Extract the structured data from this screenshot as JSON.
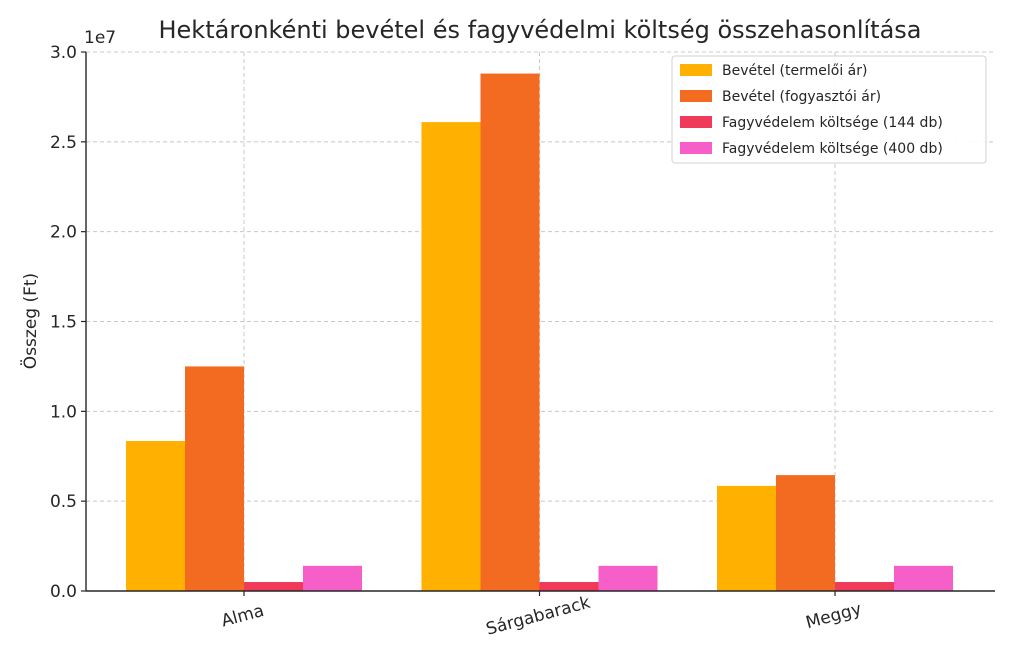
{
  "chart_data": {
    "type": "bar",
    "title": "Hektáronkénti bevétel és fagyvédelmi költség összehasonlítása",
    "ylabel": "Összeg (Ft)",
    "xlabel": "",
    "y_offset_label": "1e7",
    "y_scale": 10000000,
    "ylim": [
      0,
      30000000
    ],
    "yticks": [
      0,
      5000000,
      10000000,
      15000000,
      20000000,
      25000000,
      30000000
    ],
    "ytick_labels": [
      "0.0",
      "0.5",
      "1.0",
      "1.5",
      "2.0",
      "2.5",
      "3.0"
    ],
    "categories": [
      "Alma",
      "Sárgabarack",
      "Meggy"
    ],
    "grid": true,
    "legend_position": "top-right",
    "series": [
      {
        "name": "Bevétel (termelői ár)",
        "color": "#FFB000",
        "values": [
          8350000,
          26100000,
          5850000
        ]
      },
      {
        "name": "Bevétel (fogyasztói ár)",
        "color": "#F26B21",
        "values": [
          12500000,
          28800000,
          6450000
        ]
      },
      {
        "name": "Fagyvédelem költsége (144 db)",
        "color": "#F03A5A",
        "values": [
          500000,
          500000,
          500000
        ]
      },
      {
        "name": "Fagyvédelem költsége (400 db)",
        "color": "#F75FC8",
        "values": [
          1400000,
          1400000,
          1400000
        ]
      }
    ]
  }
}
